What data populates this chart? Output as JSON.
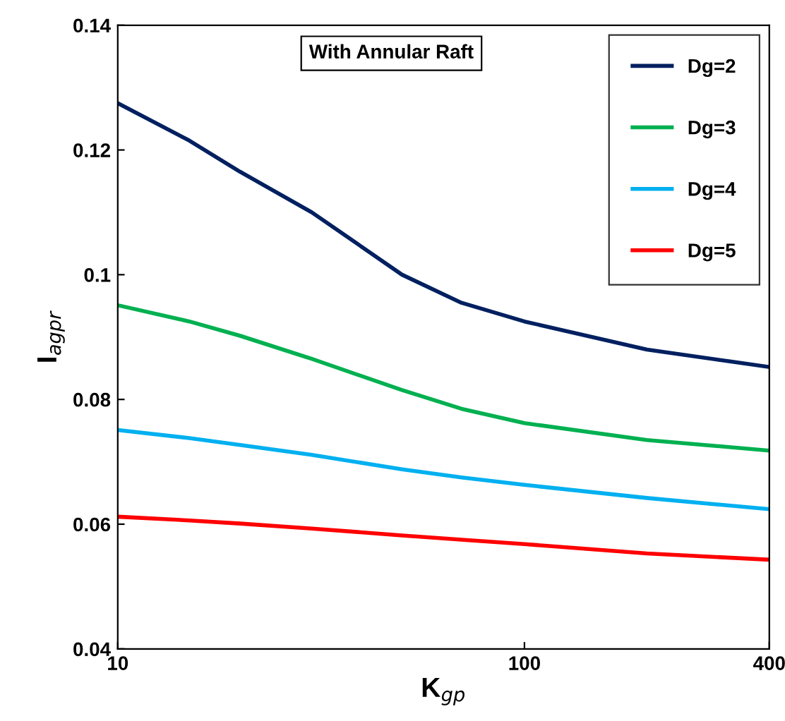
{
  "chart_data": {
    "type": "line",
    "xlabel": "K$_{gp}$",
    "ylabel": "I$_{agpr}$",
    "annotations": [
      "With Annular Raft"
    ],
    "log": "x",
    "xlim": [
      10,
      400
    ],
    "xticks": [
      10,
      100,
      400
    ],
    "ylim": [
      0.04,
      0.14
    ],
    "yticks": [
      0.04,
      0.06,
      0.08,
      0.1,
      0.12,
      0.14
    ],
    "grid": false,
    "legend": "top right",
    "line_style": "solid",
    "marker": "none",
    "series": [
      {
        "name": "Dg=2",
        "color": "#002060",
        "x": [
          10,
          15,
          20,
          30,
          50,
          70,
          100,
          200,
          400
        ],
        "values": [
          0.1275,
          0.1215,
          0.1165,
          0.11,
          0.1,
          0.0955,
          0.0925,
          0.088,
          0.0852
        ]
      },
      {
        "name": "Dg=3",
        "color": "#00b050",
        "x": [
          10,
          15,
          20,
          30,
          50,
          70,
          100,
          200,
          400
        ],
        "values": [
          0.0951,
          0.0925,
          0.0902,
          0.0865,
          0.0815,
          0.0785,
          0.0762,
          0.0735,
          0.0718
        ]
      },
      {
        "name": "Dg=4",
        "color": "#00b0f0",
        "x": [
          10,
          15,
          20,
          30,
          50,
          70,
          100,
          200,
          400
        ],
        "values": [
          0.0751,
          0.0738,
          0.0727,
          0.0711,
          0.0688,
          0.0675,
          0.0663,
          0.0642,
          0.0624
        ]
      },
      {
        "name": "Dg=5",
        "color": "#ff0000",
        "x": [
          10,
          15,
          20,
          30,
          50,
          70,
          100,
          200,
          400
        ],
        "values": [
          0.0612,
          0.0606,
          0.0601,
          0.0593,
          0.0582,
          0.0575,
          0.0568,
          0.0553,
          0.0543
        ]
      }
    ]
  }
}
